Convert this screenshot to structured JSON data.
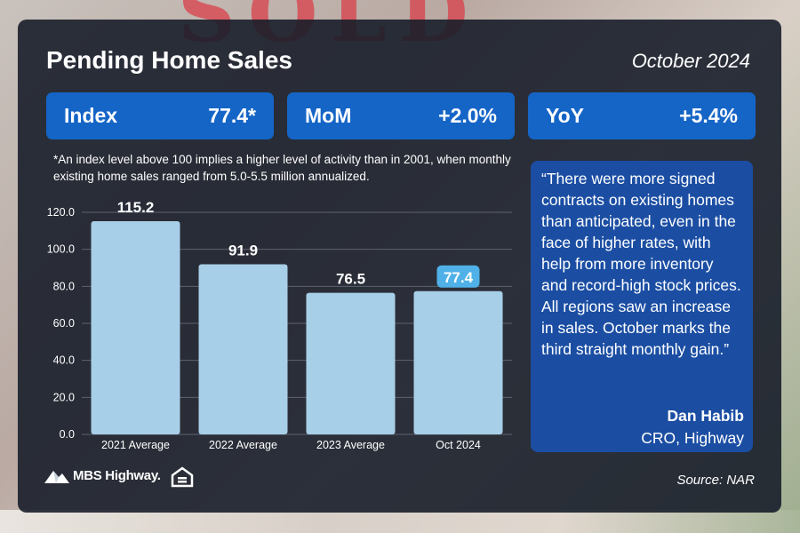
{
  "background": {
    "sign_text": "SOLD"
  },
  "header": {
    "title": "Pending Home Sales",
    "date": "October 2024"
  },
  "stats": [
    {
      "label": "Index",
      "value": "77.4*"
    },
    {
      "label": "MoM",
      "value": "+2.0%"
    },
    {
      "label": "YoY",
      "value": "+5.4%"
    }
  ],
  "footnote": "*An index level above 100 implies a higher level of activity than in 2001, when monthly existing home sales ranged from 5.0-5.5 million annualized.",
  "quote": {
    "text": "“There were more signed contracts on existing homes than anticipated, even in the face of higher rates, with help from more inventory and record-high stock prices. All regions saw an increase in sales. October marks the third straight monthly gain.”",
    "author": "Dan Habib",
    "role": "CRO, Highway"
  },
  "chart_data": {
    "type": "bar",
    "categories": [
      "2021 Average",
      "2022 Average",
      "2023 Average",
      "Oct 2024"
    ],
    "values": [
      115.2,
      91.9,
      76.5,
      77.4
    ],
    "data_labels": [
      "115.2",
      "91.9",
      "76.5",
      "77.4"
    ],
    "highlight_index": 3,
    "yticks": [
      "0.0",
      "20.0",
      "40.0",
      "60.0",
      "80.0",
      "100.0",
      "120.0"
    ],
    "ylim": [
      0,
      120
    ],
    "grid": true,
    "title": "",
    "xlabel": "",
    "ylabel": "",
    "colors": {
      "bar": "#a8cfe8",
      "highlight_label_bg": "#4fb1e8",
      "grid": "#5c6270"
    }
  },
  "footer": {
    "logo_text": "MBS Highway.",
    "source": "Source: NAR"
  },
  "colors": {
    "card": "#181e2a",
    "stat_bg": "#1565c7",
    "quote_bg": "#1b4ea3"
  }
}
